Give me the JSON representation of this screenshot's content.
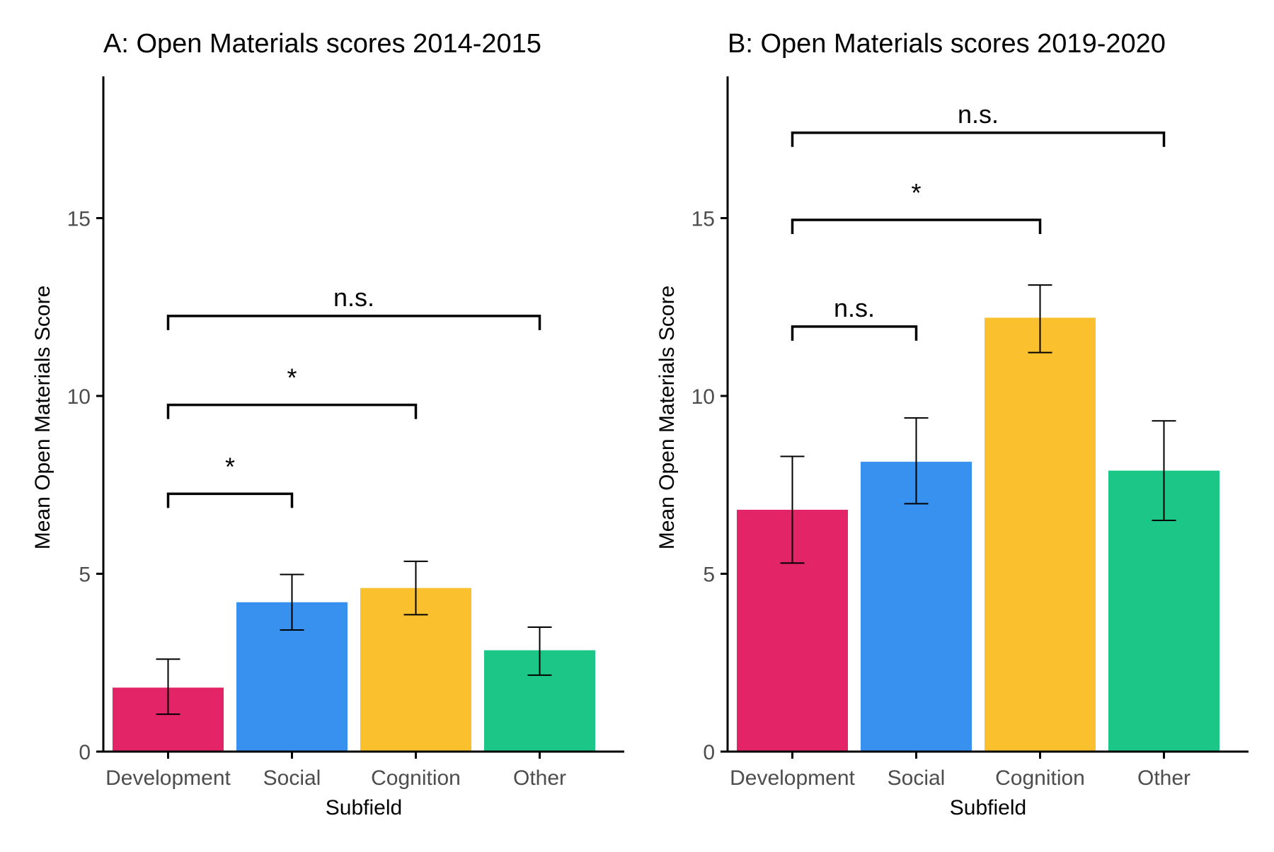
{
  "chart_data": [
    {
      "type": "bar",
      "title": "A: Open Materials scores 2014-2015",
      "xlabel": "Subfield",
      "ylabel": "Mean Open Materials Score",
      "categories": [
        "Development",
        "Social",
        "Cognition",
        "Other"
      ],
      "values": [
        1.8,
        4.2,
        4.6,
        2.85
      ],
      "error_low": [
        1.05,
        3.42,
        3.85,
        2.15
      ],
      "error_high": [
        2.6,
        4.98,
        5.35,
        3.5
      ],
      "colors": [
        "#e32568",
        "#3891ef",
        "#fbc02d",
        "#1bc686"
      ],
      "ylim": [
        0,
        18.5
      ],
      "yticks": [
        0,
        5,
        10,
        15
      ],
      "grid": false,
      "comparisons": [
        {
          "from": "Development",
          "to": "Social",
          "label": "*",
          "y": 7.25
        },
        {
          "from": "Development",
          "to": "Cognition",
          "label": "*",
          "y": 9.75
        },
        {
          "from": "Development",
          "to": "Other",
          "label": "n.s.",
          "y": 12.25
        }
      ]
    },
    {
      "type": "bar",
      "title": "B: Open Materials scores 2019-2020",
      "xlabel": "Subfield",
      "ylabel": "Mean Open Materials Score",
      "categories": [
        "Development",
        "Social",
        "Cognition",
        "Other"
      ],
      "values": [
        6.8,
        8.15,
        12.2,
        7.9
      ],
      "error_low": [
        5.3,
        6.97,
        11.22,
        6.5
      ],
      "error_high": [
        8.3,
        9.38,
        13.12,
        9.3
      ],
      "colors": [
        "#e32568",
        "#3891ef",
        "#fbc02d",
        "#1bc686"
      ],
      "ylim": [
        0,
        18.5
      ],
      "yticks": [
        0,
        5,
        10,
        15
      ],
      "grid": false,
      "comparisons": [
        {
          "from": "Development",
          "to": "Social",
          "label": "n.s.",
          "y": 11.95
        },
        {
          "from": "Development",
          "to": "Cognition",
          "label": "*",
          "y": 14.95
        },
        {
          "from": "Development",
          "to": "Other",
          "label": "n.s.",
          "y": 17.4
        }
      ]
    }
  ]
}
